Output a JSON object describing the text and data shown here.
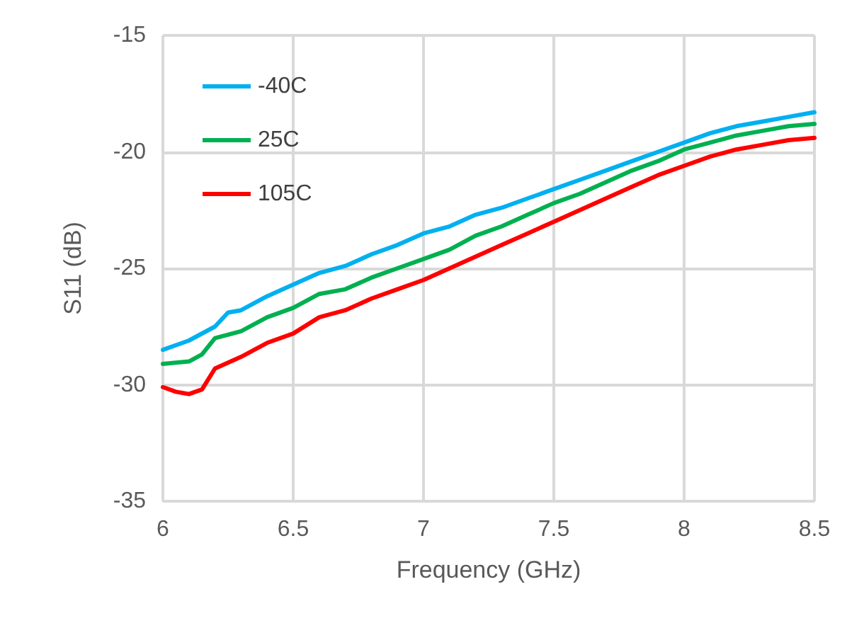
{
  "chart_data": {
    "type": "line",
    "xlabel": "Frequency (GHz)",
    "ylabel": "S11 (dB)",
    "xlim": [
      6,
      8.5
    ],
    "xticks": [
      6,
      6.5,
      7,
      7.5,
      8,
      8.5
    ],
    "ylim": [
      -35,
      -15
    ],
    "yticks": [
      -35,
      -30,
      -25,
      -20,
      -15
    ],
    "grid": true,
    "legend": "top left",
    "marker": "none",
    "line_style": "solid",
    "series": [
      {
        "name": "-40C",
        "color": "#00b0f0",
        "x": [
          6,
          6.1,
          6.2,
          6.25,
          6.3,
          6.4,
          6.5,
          6.6,
          6.7,
          6.8,
          6.9,
          7,
          7.1,
          7.2,
          7.3,
          7.4,
          7.5,
          7.6,
          7.7,
          7.8,
          7.9,
          8,
          8.1,
          8.2,
          8.3,
          8.4,
          8.5
        ],
        "values": [
          -28.5,
          -28.1,
          -27.5,
          -26.9,
          -26.8,
          -26.2,
          -25.7,
          -25.2,
          -24.9,
          -24.4,
          -24.0,
          -23.5,
          -23.2,
          -22.7,
          -22.4,
          -22.0,
          -21.6,
          -21.2,
          -20.8,
          -20.4,
          -20.0,
          -19.6,
          -19.2,
          -18.9,
          -18.7,
          -18.5,
          -18.3
        ]
      },
      {
        "name": "25C",
        "color": "#00b050",
        "x": [
          6,
          6.1,
          6.15,
          6.2,
          6.3,
          6.4,
          6.5,
          6.6,
          6.7,
          6.8,
          6.9,
          7,
          7.1,
          7.2,
          7.3,
          7.4,
          7.5,
          7.6,
          7.7,
          7.8,
          7.9,
          8,
          8.1,
          8.2,
          8.3,
          8.4,
          8.5
        ],
        "values": [
          -29.1,
          -29.0,
          -28.7,
          -28.0,
          -27.7,
          -27.1,
          -26.7,
          -26.1,
          -25.9,
          -25.4,
          -25.0,
          -24.6,
          -24.2,
          -23.6,
          -23.2,
          -22.7,
          -22.2,
          -21.8,
          -21.3,
          -20.8,
          -20.4,
          -19.9,
          -19.6,
          -19.3,
          -19.1,
          -18.9,
          -18.8
        ]
      },
      {
        "name": "105C",
        "color": "#ff0000",
        "x": [
          6,
          6.05,
          6.1,
          6.15,
          6.2,
          6.3,
          6.4,
          6.5,
          6.6,
          6.7,
          6.8,
          6.9,
          7,
          7.1,
          7.2,
          7.3,
          7.4,
          7.5,
          7.6,
          7.7,
          7.8,
          7.9,
          8,
          8.1,
          8.2,
          8.3,
          8.4,
          8.5
        ],
        "values": [
          -30.1,
          -30.3,
          -30.4,
          -30.2,
          -29.3,
          -28.8,
          -28.2,
          -27.8,
          -27.1,
          -26.8,
          -26.3,
          -25.9,
          -25.5,
          -25.0,
          -24.5,
          -24.0,
          -23.5,
          -23.0,
          -22.5,
          -22.0,
          -21.5,
          -21.0,
          -20.6,
          -20.2,
          -19.9,
          -19.7,
          -19.5,
          -19.4
        ]
      }
    ]
  }
}
